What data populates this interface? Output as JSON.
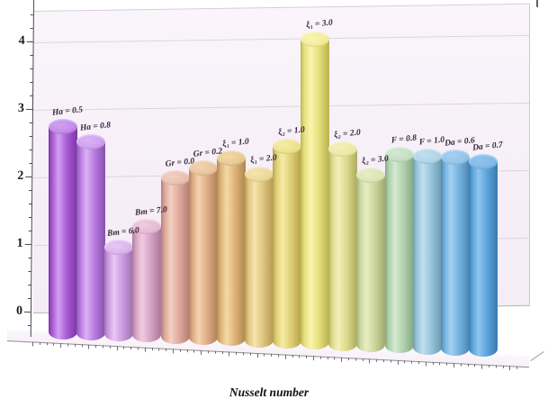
{
  "title": {
    "text": "Nusselt number"
  },
  "y_axis": {
    "tick_labels": [
      "4",
      "3",
      "2",
      "1",
      "0"
    ],
    "tick_values": [
      4,
      3,
      2,
      1,
      0
    ]
  },
  "chart_data": {
    "type": "bar",
    "title": "Nusselt number",
    "xlabel": "",
    "ylabel": "",
    "ylim": [
      0,
      4
    ],
    "yticks": [
      0,
      1,
      2,
      3,
      4
    ],
    "grid": "horizontal",
    "legend": "none",
    "style": "3d-cylinder",
    "categories": [
      "Ha = 0.5",
      "Ha = 0.8",
      "Bm = 6.0",
      "Bm = 7.0",
      "Gr = 0.0",
      "Gr = 0.2",
      "ξ₁ = 1.0",
      "ξ₁ = 2.0",
      "ξ₂ = 1.0",
      "ξ₁ = 3.0",
      "ξ₂ = 2.0",
      "ξ₂ = 3.0",
      "F = 0.8",
      "F = 1.0",
      "Da = 0.6",
      "Da = 0.7"
    ],
    "values": [
      2.85,
      2.65,
      1.2,
      1.5,
      2.2,
      2.35,
      2.5,
      2.3,
      2.7,
      4.2,
      2.7,
      2.35,
      2.65,
      2.65,
      2.65,
      2.6
    ],
    "bars": [
      {
        "label": "Ha = 0.5",
        "value": 2.85,
        "color": {
          "base": "#a95ad2",
          "light": "#d2a0f2",
          "dark": "#7c39a8",
          "cap": "#c38cea"
        }
      },
      {
        "label": "Ha = 0.8",
        "value": 2.65,
        "color": {
          "base": "#b678de",
          "light": "#dcb2f6",
          "dark": "#8c54b2",
          "cap": "#cfa2f0"
        }
      },
      {
        "label": "Bm = 6.0",
        "value": 1.2,
        "color": {
          "base": "#c99ade",
          "light": "#e9c8f6",
          "dark": "#a173b6",
          "cap": "#dbb5ec"
        }
      },
      {
        "label": "Bm = 7.0",
        "value": 1.5,
        "color": {
          "base": "#d6a3c4",
          "light": "#f0cce2",
          "dark": "#ad7c9c",
          "cap": "#e5bcd4"
        }
      },
      {
        "label": "Gr = 0.0",
        "value": 2.2,
        "color": {
          "base": "#dda89a",
          "light": "#f4d0c2",
          "dark": "#b48176",
          "cap": "#eabfb0"
        }
      },
      {
        "label": "Gr = 0.2",
        "value": 2.35,
        "color": {
          "base": "#ddab85",
          "light": "#f4d4b2",
          "dark": "#b4845c",
          "cap": "#eac49e"
        }
      },
      {
        "label": "ξ₁ = 1.0",
        "value": 2.5,
        "color": {
          "base": "#dcb277",
          "light": "#f4daa6",
          "dark": "#b28a50",
          "cap": "#eac995"
        }
      },
      {
        "label": "ξ₁ = 2.0",
        "value": 2.3,
        "color": {
          "base": "#dfc47e",
          "light": "#f6e5ac",
          "dark": "#b69c54",
          "cap": "#eed89c"
        }
      },
      {
        "label": "ξ₂ = 1.0",
        "value": 2.7,
        "color": {
          "base": "#dfce74",
          "light": "#f6eca4",
          "dark": "#b6a54e",
          "cap": "#eee28e"
        }
      },
      {
        "label": "ξ₁ = 3.0",
        "value": 4.2,
        "color": {
          "base": "#e5df7c",
          "light": "#f9f5ae",
          "dark": "#bcb652",
          "cap": "#f3ed9c"
        }
      },
      {
        "label": "ξ₂ = 2.0",
        "value": 2.7,
        "color": {
          "base": "#dcd98c",
          "light": "#f3f1b8",
          "dark": "#b2af62",
          "cap": "#ebe9a8"
        }
      },
      {
        "label": "ξ₂ = 3.0",
        "value": 2.35,
        "color": {
          "base": "#ccd59c",
          "light": "#e7eec4",
          "dark": "#a3ad72",
          "cap": "#dde5b4"
        }
      },
      {
        "label": "F = 0.8",
        "value": 2.65,
        "color": {
          "base": "#b0d0ae",
          "light": "#d4e9d2",
          "dark": "#87a885",
          "cap": "#c6dfc4"
        }
      },
      {
        "label": "F = 1.0",
        "value": 2.65,
        "color": {
          "base": "#96c3d9",
          "light": "#c0dfef",
          "dark": "#6e9cb2",
          "cap": "#b2d5e7"
        }
      },
      {
        "label": "Da = 0.6",
        "value": 2.65,
        "color": {
          "base": "#72b1dd",
          "light": "#a4d0f1",
          "dark": "#4e88b5",
          "cap": "#95c5eb"
        }
      },
      {
        "label": "Da = 0.7",
        "value": 2.6,
        "color": {
          "base": "#5aa4d9",
          "light": "#90c5ef",
          "dark": "#3b7cb2",
          "cap": "#81bae7"
        }
      }
    ]
  }
}
